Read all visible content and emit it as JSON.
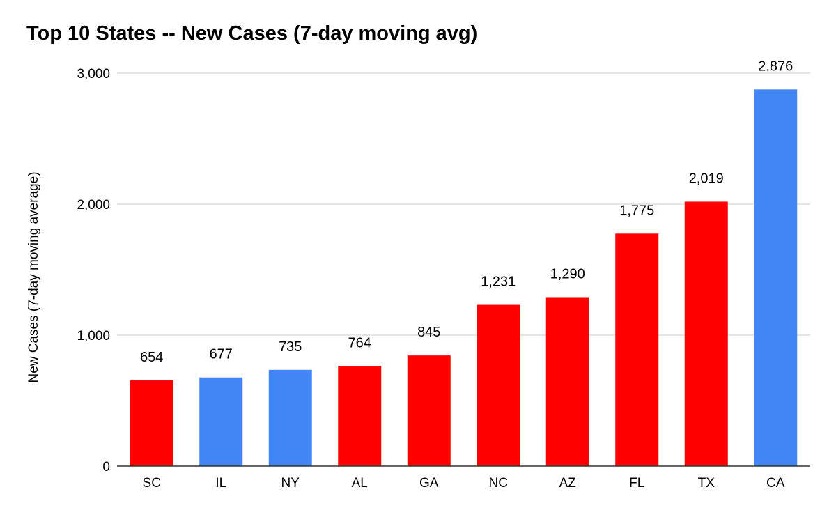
{
  "chart_data": {
    "type": "bar",
    "title": "Top 10 States -- New Cases (7-day moving avg)",
    "xlabel": "",
    "ylabel": "New Cases (7-day moving average)",
    "ylim": [
      0,
      3000
    ],
    "yticks": [
      0,
      1000,
      2000,
      3000
    ],
    "ytick_labels": [
      "0",
      "1,000",
      "2,000",
      "3,000"
    ],
    "grid": true,
    "categories": [
      "SC",
      "IL",
      "NY",
      "AL",
      "GA",
      "NC",
      "AZ",
      "FL",
      "TX",
      "CA"
    ],
    "values": [
      654,
      677,
      735,
      764,
      845,
      1231,
      1290,
      1775,
      2019,
      2876
    ],
    "value_labels": [
      "654",
      "677",
      "735",
      "764",
      "845",
      "1,231",
      "1,290",
      "1,775",
      "2,019",
      "2,876"
    ],
    "bar_colors": [
      "#ff0000",
      "#4285f4",
      "#4285f4",
      "#ff0000",
      "#ff0000",
      "#ff0000",
      "#ff0000",
      "#ff0000",
      "#ff0000",
      "#4285f4"
    ]
  }
}
